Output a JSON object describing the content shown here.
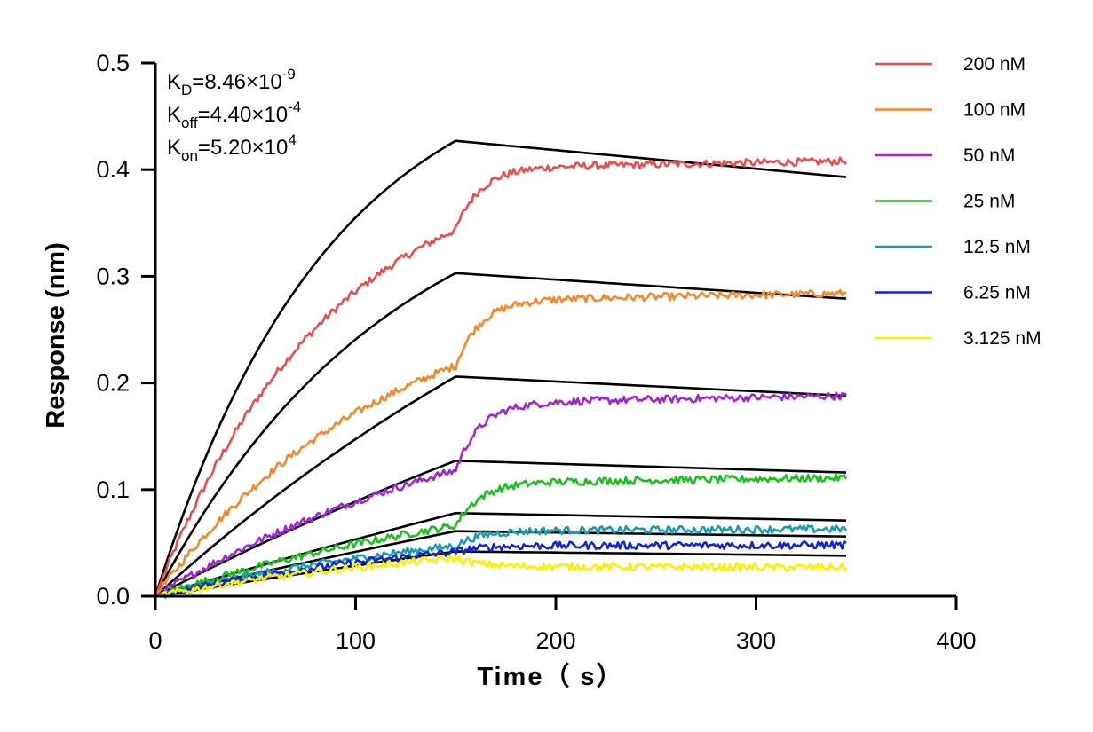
{
  "chart_data": {
    "type": "line",
    "title": "",
    "xlabel": "Time（ s）",
    "ylabel": "Response (nm)",
    "xlim": [
      0,
      400
    ],
    "ylim": [
      0,
      0.5
    ],
    "x_ticks": [
      "0",
      "100",
      "200",
      "300",
      "400"
    ],
    "y_ticks": [
      "0.0",
      "0.1",
      "0.2",
      "0.3",
      "0.4",
      "0.5"
    ],
    "grid": false,
    "legend_position": "right",
    "association_end": 150,
    "data_end": 345,
    "kinetics": [
      {
        "base": "K",
        "sub": "D",
        "value": "=8.46×10",
        "exp": "-9"
      },
      {
        "base": "K",
        "sub": "off",
        "value": "=4.40×10",
        "exp": "-4"
      },
      {
        "base": "K",
        "sub": "on",
        "value": "=5.20×10",
        "exp": "4"
      }
    ],
    "series": [
      {
        "name": "200 nM",
        "color": "#ee4b4b",
        "assoc_plateau": 0.418,
        "assoc_rate": 0.0115,
        "end_value": 0.408,
        "fit_peak": 0.427,
        "fit_end": 0.393,
        "fit_curvature": 0.0115
      },
      {
        "name": "100 nM",
        "color": "#f7882a",
        "assoc_plateau": 0.3,
        "assoc_rate": 0.0085,
        "end_value": 0.284,
        "fit_peak": 0.303,
        "fit_end": 0.279,
        "fit_curvature": 0.0085
      },
      {
        "name": "50 nM",
        "color": "#a322d4",
        "assoc_plateau": 0.21,
        "assoc_rate": 0.0055,
        "end_value": 0.188,
        "fit_peak": 0.206,
        "fit_end": 0.188,
        "fit_curvature": 0.003
      },
      {
        "name": "25 nM",
        "color": "#19c21b",
        "assoc_plateau": 0.135,
        "assoc_rate": 0.0045,
        "end_value": 0.111,
        "fit_peak": 0.127,
        "fit_end": 0.116,
        "fit_curvature": 0.002
      },
      {
        "name": "12.5 nM",
        "color": "#1a9db0",
        "assoc_plateau": 0.084,
        "assoc_rate": 0.0055,
        "end_value": 0.063,
        "fit_peak": 0.078,
        "fit_end": 0.071,
        "fit_curvature": 0.001
      },
      {
        "name": "6.25 nM",
        "color": "#1024d6",
        "assoc_plateau": 0.07,
        "assoc_rate": 0.006,
        "end_value": 0.048,
        "fit_peak": 0.061,
        "fit_end": 0.056,
        "fit_curvature": 0.001
      },
      {
        "name": "3.125 nM",
        "color": "#ffef00",
        "assoc_plateau": 0.06,
        "assoc_rate": 0.006,
        "end_value": 0.027,
        "fit_peak": 0.042,
        "fit_end": 0.038,
        "fit_curvature": 0.001
      }
    ]
  }
}
